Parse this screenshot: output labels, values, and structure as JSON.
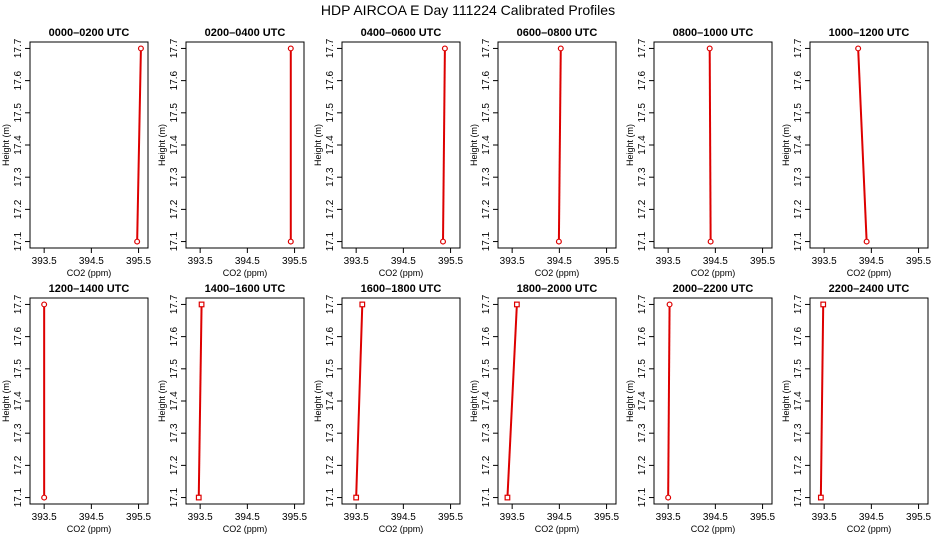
{
  "page": {
    "title": "HDP AIRCOA E  Day 111224  Calibrated Profiles"
  },
  "colors": {
    "line": "#dd0000",
    "marker": "#dd0000",
    "frame": "#000000"
  },
  "chart_data": [
    {
      "type": "line",
      "title": "0000–0200 UTC",
      "xlabel": "CO2 (ppm)",
      "ylabel": "Height (m)",
      "xlim": [
        393.2,
        395.7
      ],
      "ylim": [
        17.08,
        17.72
      ],
      "xticks": [
        "393.5",
        "394.5",
        "395.5"
      ],
      "yticks": [
        "17.1",
        "17.2",
        "17.3",
        "17.4",
        "17.5",
        "17.6",
        "17.7"
      ],
      "x": [
        395.47,
        395.55
      ],
      "y": [
        17.1,
        17.7
      ],
      "marker": "circle"
    },
    {
      "type": "line",
      "title": "0200–0400 UTC",
      "xlabel": "CO2 (ppm)",
      "ylabel": "Height (m)",
      "xlim": [
        393.2,
        395.7
      ],
      "ylim": [
        17.08,
        17.72
      ],
      "xticks": [
        "393.5",
        "394.5",
        "395.5"
      ],
      "yticks": [
        "17.1",
        "17.2",
        "17.3",
        "17.4",
        "17.5",
        "17.6",
        "17.7"
      ],
      "x": [
        395.42,
        395.42
      ],
      "y": [
        17.1,
        17.7
      ],
      "marker": "circle"
    },
    {
      "type": "line",
      "title": "0400–0600 UTC",
      "xlabel": "CO2 (ppm)",
      "ylabel": "Height (m)",
      "xlim": [
        393.2,
        395.7
      ],
      "ylim": [
        17.08,
        17.72
      ],
      "xticks": [
        "393.5",
        "394.5",
        "395.5"
      ],
      "yticks": [
        "17.1",
        "17.2",
        "17.3",
        "17.4",
        "17.5",
        "17.6",
        "17.7"
      ],
      "x": [
        395.34,
        395.38
      ],
      "y": [
        17.1,
        17.7
      ],
      "marker": "circle"
    },
    {
      "type": "line",
      "title": "0600–0800 UTC",
      "xlabel": "CO2 (ppm)",
      "ylabel": "Height (m)",
      "xlim": [
        393.2,
        395.7
      ],
      "ylim": [
        17.08,
        17.72
      ],
      "xticks": [
        "393.5",
        "394.5",
        "395.5"
      ],
      "yticks": [
        "17.1",
        "17.2",
        "17.3",
        "17.4",
        "17.5",
        "17.6",
        "17.7"
      ],
      "x": [
        394.49,
        394.53
      ],
      "y": [
        17.1,
        17.7
      ],
      "marker": "circle"
    },
    {
      "type": "line",
      "title": "0800–1000 UTC",
      "xlabel": "CO2 (ppm)",
      "ylabel": "Height (m)",
      "xlim": [
        393.2,
        395.7
      ],
      "ylim": [
        17.08,
        17.72
      ],
      "xticks": [
        "393.5",
        "394.5",
        "395.5"
      ],
      "yticks": [
        "17.1",
        "17.2",
        "17.3",
        "17.4",
        "17.5",
        "17.6",
        "17.7"
      ],
      "x": [
        394.4,
        394.38
      ],
      "y": [
        17.1,
        17.7
      ],
      "marker": "circle"
    },
    {
      "type": "line",
      "title": "1000–1200 UTC",
      "xlabel": "CO2 (ppm)",
      "ylabel": "Height (m)",
      "xlim": [
        393.2,
        395.7
      ],
      "ylim": [
        17.08,
        17.72
      ],
      "xticks": [
        "393.5",
        "394.5",
        "395.5"
      ],
      "yticks": [
        "17.1",
        "17.2",
        "17.3",
        "17.4",
        "17.5",
        "17.6",
        "17.7"
      ],
      "x": [
        394.4,
        394.22
      ],
      "y": [
        17.1,
        17.7
      ],
      "marker": "circle"
    },
    {
      "type": "line",
      "title": "1200–1400 UTC",
      "xlabel": "CO2 (ppm)",
      "ylabel": "Height (m)",
      "xlim": [
        393.2,
        395.7
      ],
      "ylim": [
        17.08,
        17.72
      ],
      "xticks": [
        "393.5",
        "394.5",
        "395.5"
      ],
      "yticks": [
        "17.1",
        "17.2",
        "17.3",
        "17.4",
        "17.5",
        "17.6",
        "17.7"
      ],
      "x": [
        393.5,
        393.5
      ],
      "y": [
        17.1,
        17.7
      ],
      "marker": "circle"
    },
    {
      "type": "line",
      "title": "1400–1600 UTC",
      "xlabel": "CO2 (ppm)",
      "ylabel": "Height (m)",
      "xlim": [
        393.2,
        395.7
      ],
      "ylim": [
        17.08,
        17.72
      ],
      "xticks": [
        "393.5",
        "394.5",
        "395.5"
      ],
      "yticks": [
        "17.1",
        "17.2",
        "17.3",
        "17.4",
        "17.5",
        "17.6",
        "17.7"
      ],
      "x": [
        393.47,
        393.53
      ],
      "y": [
        17.1,
        17.7
      ],
      "marker": "square"
    },
    {
      "type": "line",
      "title": "1600–1800 UTC",
      "xlabel": "CO2 (ppm)",
      "ylabel": "Height (m)",
      "xlim": [
        393.2,
        395.7
      ],
      "ylim": [
        17.08,
        17.72
      ],
      "xticks": [
        "393.5",
        "394.5",
        "395.5"
      ],
      "yticks": [
        "17.1",
        "17.2",
        "17.3",
        "17.4",
        "17.5",
        "17.6",
        "17.7"
      ],
      "x": [
        393.5,
        393.63
      ],
      "y": [
        17.1,
        17.7
      ],
      "marker": "square"
    },
    {
      "type": "line",
      "title": "1800–2000 UTC",
      "xlabel": "CO2 (ppm)",
      "ylabel": "Height (m)",
      "xlim": [
        393.2,
        395.7
      ],
      "ylim": [
        17.08,
        17.72
      ],
      "xticks": [
        "393.5",
        "394.5",
        "395.5"
      ],
      "yticks": [
        "17.1",
        "17.2",
        "17.3",
        "17.4",
        "17.5",
        "17.6",
        "17.7"
      ],
      "x": [
        393.4,
        393.6
      ],
      "y": [
        17.1,
        17.7
      ],
      "marker": "square"
    },
    {
      "type": "line",
      "title": "2000–2200 UTC",
      "xlabel": "CO2 (ppm)",
      "ylabel": "Height (m)",
      "xlim": [
        393.2,
        395.7
      ],
      "ylim": [
        17.08,
        17.72
      ],
      "xticks": [
        "393.5",
        "394.5",
        "395.5"
      ],
      "yticks": [
        "17.1",
        "17.2",
        "17.3",
        "17.4",
        "17.5",
        "17.6",
        "17.7"
      ],
      "x": [
        393.5,
        393.53
      ],
      "y": [
        17.1,
        17.7
      ],
      "marker": "circle"
    },
    {
      "type": "line",
      "title": "2200–2400 UTC",
      "xlabel": "CO2 (ppm)",
      "ylabel": "Height (m)",
      "xlim": [
        393.2,
        395.7
      ],
      "ylim": [
        17.08,
        17.72
      ],
      "xticks": [
        "393.5",
        "394.5",
        "395.5"
      ],
      "yticks": [
        "17.1",
        "17.2",
        "17.3",
        "17.4",
        "17.5",
        "17.6",
        "17.7"
      ],
      "x": [
        393.43,
        393.48
      ],
      "y": [
        17.1,
        17.7
      ],
      "marker": "square"
    }
  ]
}
